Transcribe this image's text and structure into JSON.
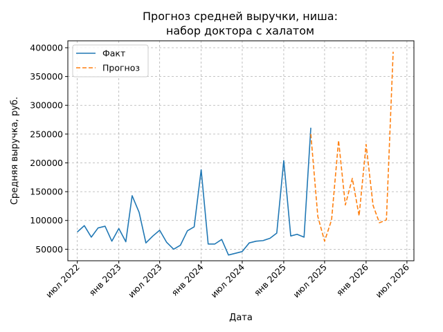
{
  "chart_data": {
    "type": "line",
    "title_line1": "Прогноз средней выручки, ниша:",
    "title_line2": "набор доктора с халатом",
    "xlabel": "Дата",
    "ylabel": "Средняя выручка, руб.",
    "x_ticks": [
      {
        "date": "2022-07-01",
        "label": "июл 2022"
      },
      {
        "date": "2023-01-01",
        "label": "янв 2023"
      },
      {
        "date": "2023-07-01",
        "label": "июл 2023"
      },
      {
        "date": "2024-01-01",
        "label": "янв 2024"
      },
      {
        "date": "2024-07-01",
        "label": "июл 2024"
      },
      {
        "date": "2025-01-01",
        "label": "янв 2025"
      },
      {
        "date": "2025-07-01",
        "label": "июл 2025"
      },
      {
        "date": "2026-01-01",
        "label": "янв 2026"
      },
      {
        "date": "2026-07-01",
        "label": "июл 2026"
      }
    ],
    "y_ticks": [
      {
        "value": 50000,
        "label": "50000"
      },
      {
        "value": 100000,
        "label": "100000"
      },
      {
        "value": 150000,
        "label": "150000"
      },
      {
        "value": 200000,
        "label": "200000"
      },
      {
        "value": 250000,
        "label": "250000"
      },
      {
        "value": 300000,
        "label": "300000"
      },
      {
        "value": 350000,
        "label": "350000"
      },
      {
        "value": 400000,
        "label": "400000"
      }
    ],
    "xlim": [
      "2022-05-20",
      "2026-08-01"
    ],
    "ylim": [
      30000,
      412000
    ],
    "grid": true,
    "legend_position": "top-left",
    "series": [
      {
        "name": "Факт",
        "color": "#1f77b4",
        "style": "solid",
        "points": [
          {
            "x": "2022-07-01",
            "y": 80000
          },
          {
            "x": "2022-08-01",
            "y": 91000
          },
          {
            "x": "2022-09-01",
            "y": 71000
          },
          {
            "x": "2022-10-01",
            "y": 87000
          },
          {
            "x": "2022-11-01",
            "y": 90000
          },
          {
            "x": "2022-12-01",
            "y": 64000
          },
          {
            "x": "2023-01-01",
            "y": 86000
          },
          {
            "x": "2023-02-01",
            "y": 63000
          },
          {
            "x": "2023-03-01",
            "y": 143000
          },
          {
            "x": "2023-04-01",
            "y": 114000
          },
          {
            "x": "2023-05-01",
            "y": 61000
          },
          {
            "x": "2023-06-01",
            "y": 73000
          },
          {
            "x": "2023-07-01",
            "y": 83000
          },
          {
            "x": "2023-08-01",
            "y": 62000
          },
          {
            "x": "2023-09-01",
            "y": 50000
          },
          {
            "x": "2023-10-01",
            "y": 57000
          },
          {
            "x": "2023-11-01",
            "y": 82000
          },
          {
            "x": "2023-12-01",
            "y": 89000
          },
          {
            "x": "2024-01-01",
            "y": 188000
          },
          {
            "x": "2024-02-01",
            "y": 59000
          },
          {
            "x": "2024-03-01",
            "y": 59000
          },
          {
            "x": "2024-04-01",
            "y": 67000
          },
          {
            "x": "2024-05-01",
            "y": 40000
          },
          {
            "x": "2024-06-01",
            "y": 43000
          },
          {
            "x": "2024-07-01",
            "y": 46000
          },
          {
            "x": "2024-08-01",
            "y": 61000
          },
          {
            "x": "2024-09-01",
            "y": 64000
          },
          {
            "x": "2024-10-01",
            "y": 65000
          },
          {
            "x": "2024-11-01",
            "y": 69000
          },
          {
            "x": "2024-12-01",
            "y": 78000
          },
          {
            "x": "2025-01-01",
            "y": 204000
          },
          {
            "x": "2025-02-01",
            "y": 73000
          },
          {
            "x": "2025-03-01",
            "y": 76000
          },
          {
            "x": "2025-04-01",
            "y": 71000
          },
          {
            "x": "2025-05-01",
            "y": 261000
          }
        ]
      },
      {
        "name": "Прогноз",
        "color": "#ff7f0e",
        "style": "dashed",
        "points": [
          {
            "x": "2025-05-01",
            "y": 250000
          },
          {
            "x": "2025-06-01",
            "y": 107000
          },
          {
            "x": "2025-07-01",
            "y": 64000
          },
          {
            "x": "2025-08-01",
            "y": 101000
          },
          {
            "x": "2025-09-01",
            "y": 239000
          },
          {
            "x": "2025-10-01",
            "y": 127000
          },
          {
            "x": "2025-11-01",
            "y": 173000
          },
          {
            "x": "2025-12-01",
            "y": 108000
          },
          {
            "x": "2026-01-01",
            "y": 232000
          },
          {
            "x": "2026-02-01",
            "y": 126000
          },
          {
            "x": "2026-03-01",
            "y": 96000
          },
          {
            "x": "2026-04-01",
            "y": 101000
          },
          {
            "x": "2026-05-01",
            "y": 393000
          }
        ]
      }
    ]
  }
}
